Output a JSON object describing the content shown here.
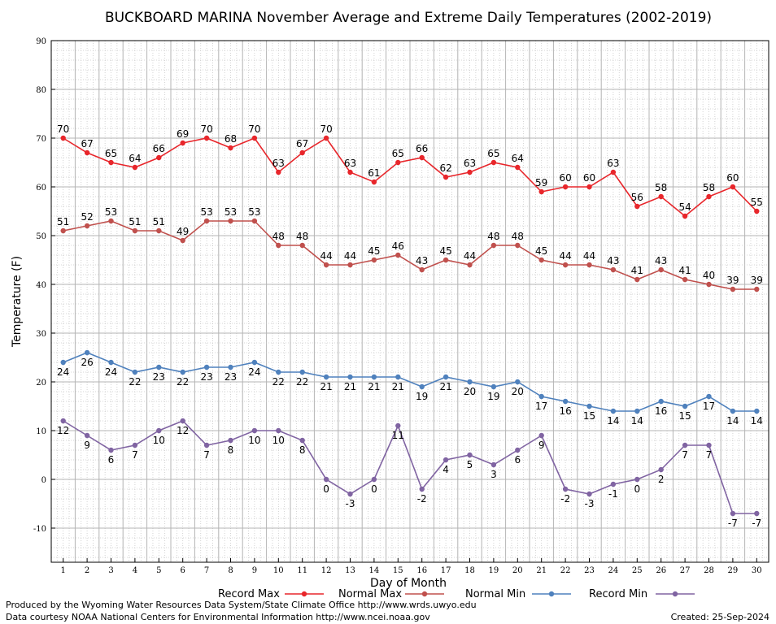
{
  "chart_data": {
    "type": "line",
    "title": "BUCKBOARD MARINA November Average and Extreme Daily Temperatures (2002-2019)",
    "xlabel": "Day of Month",
    "ylabel": "Temperature (F)",
    "ylim": [
      -17,
      90
    ],
    "yticks": [
      -10,
      0,
      10,
      20,
      30,
      40,
      50,
      60,
      70,
      80,
      90
    ],
    "grid": true,
    "legend_position": "bottom",
    "x": [
      1,
      2,
      3,
      4,
      5,
      6,
      7,
      8,
      9,
      10,
      11,
      12,
      13,
      14,
      15,
      16,
      17,
      18,
      19,
      20,
      21,
      22,
      23,
      24,
      25,
      26,
      27,
      28,
      29,
      30
    ],
    "series": [
      {
        "name": "Record Max",
        "color": "#e8262b",
        "label_position": "above",
        "values": [
          70,
          67,
          65,
          64,
          66,
          69,
          70,
          68,
          70,
          63,
          67,
          70,
          63,
          61,
          65,
          66,
          62,
          63,
          65,
          64,
          59,
          60,
          60,
          63,
          56,
          58,
          54,
          58,
          60,
          55
        ]
      },
      {
        "name": "Normal Max",
        "color": "#c0504d",
        "label_position": "above",
        "values": [
          51,
          52,
          53,
          51,
          51,
          49,
          53,
          53,
          53,
          48,
          48,
          44,
          44,
          45,
          46,
          43,
          45,
          44,
          48,
          48,
          45,
          44,
          44,
          43,
          41,
          43,
          41,
          40,
          39,
          39
        ]
      },
      {
        "name": "Normal Min",
        "color": "#4f81bd",
        "label_position": "below",
        "values": [
          24,
          26,
          24,
          22,
          23,
          22,
          23,
          23,
          24,
          22,
          22,
          21,
          21,
          21,
          21,
          19,
          21,
          20,
          19,
          20,
          17,
          16,
          15,
          14,
          14,
          16,
          15,
          17,
          14,
          14
        ]
      },
      {
        "name": "Record Min",
        "color": "#8064a2",
        "label_position": "below",
        "values": [
          12,
          9,
          6,
          7,
          10,
          12,
          7,
          8,
          10,
          10,
          8,
          0,
          -3,
          0,
          11,
          -2,
          4,
          5,
          3,
          6,
          9,
          -2,
          -3,
          -1,
          0,
          2,
          7,
          7,
          -7,
          -7
        ]
      }
    ]
  },
  "footer": {
    "produced_by": "Produced by the Wyoming Water Resources Data System/State Climate Office http://www.wrds.uwyo.edu",
    "courtesy": "Data courtesy NOAA National Centers for Environmental Information http://www.ncei.noaa.gov",
    "created": "Created:  25-Sep-2024"
  }
}
